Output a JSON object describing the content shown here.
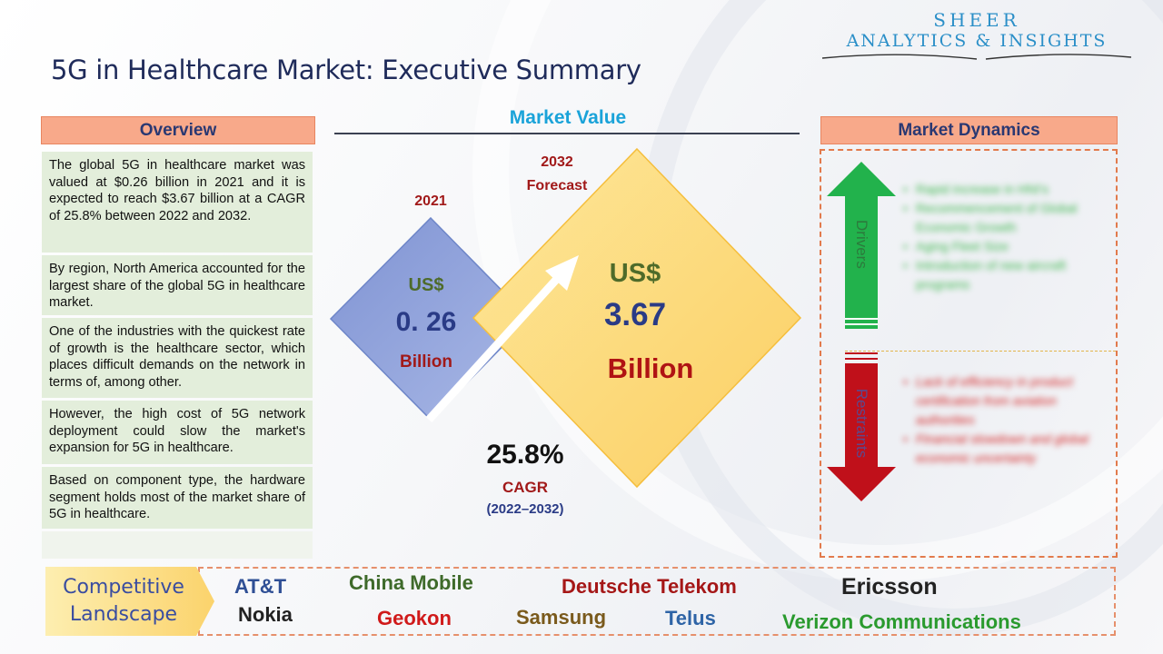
{
  "title": "5G in Healthcare Market: Executive Summary",
  "logo": {
    "line1": "SHEER",
    "line2": "ANALYTICS & INSIGHTS"
  },
  "overview": {
    "heading": "Overview",
    "items": [
      "The global 5G in healthcare market was valued at $0.26 billion in 2021 and it is expected to reach $3.67 billion at a CAGR of 25.8% between 2022 and 2032.",
      "By region, North America accounted for the largest share of the global 5G in healthcare market.",
      "One of the industries with the quickest rate of growth is the healthcare sector, which places difficult demands on the network in terms of, among other.",
      "However, the high cost of 5G network deployment could slow the market's expansion for 5G in healthcare.",
      "Based on component type, the hardware segment holds most of the market share of 5G in healthcare."
    ]
  },
  "market_value": {
    "heading": "Market Value",
    "y2021": {
      "year": "2021",
      "currency": "US$",
      "value": "0. 26",
      "unit": "Billion"
    },
    "y2032": {
      "year": "2032",
      "year_sub": "Forecast",
      "currency": "US$",
      "value": "3.67",
      "unit": "Billion"
    },
    "cagr": {
      "value": "25.8%",
      "label": "CAGR",
      "period": "(2022–2032)"
    }
  },
  "market_dynamics": {
    "heading": "Market Dynamics",
    "drivers_label": "Drivers",
    "restraints_label": "Restraints",
    "drivers": [
      "Rapid increase in HNI's",
      "Recommencement of Global Economic Growth",
      "Aging Fleet Size",
      "Introduction of new aircraft programs"
    ],
    "restraints": [
      "Lack of efficiency in product certification from aviation authorities",
      "Financial slowdown and global economic uncertainty"
    ]
  },
  "competitive": {
    "label_line1": "Competitive",
    "label_line2": "Landscape",
    "companies": {
      "att": "AT&T",
      "nokia": "Nokia",
      "china_mobile": "China Mobile",
      "geokon": "Geokon",
      "deutsche_telekom": "Deutsche Telekom",
      "samsung": "Samsung",
      "telus": "Telus",
      "ericsson": "Ericsson",
      "verizon": "Verizon Communications"
    }
  },
  "colors": {
    "heading_orange": "#f8a98a",
    "overview_green": "#e3eedb",
    "diamond_blue": "#8c9fd8",
    "diamond_yellow": "#fdd877",
    "driver_green": "#22b24c",
    "restraint_red": "#c0101a"
  }
}
